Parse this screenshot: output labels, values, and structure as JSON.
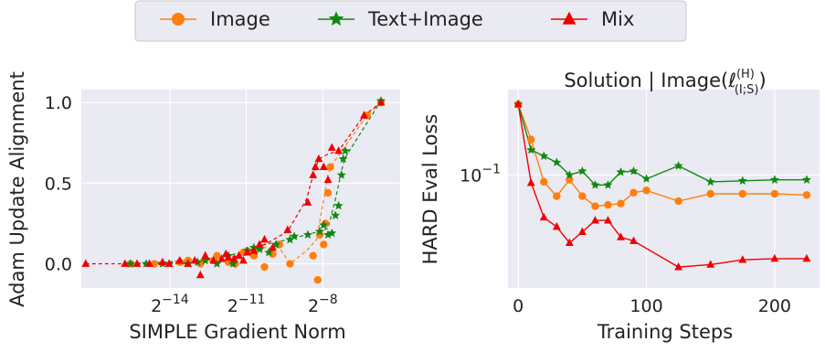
{
  "legend": {
    "entries": [
      {
        "label": "Image",
        "color": "#ff7f0e",
        "marker": "circle"
      },
      {
        "label": "Text+Image",
        "color": "#118811",
        "marker": "star"
      },
      {
        "label": "Mix",
        "color": "#ee0000",
        "marker": "triangle"
      }
    ],
    "placement": "top-center"
  },
  "chart_data": [
    {
      "type": "scatter",
      "title": "",
      "xlabel": "SIMPLE Gradient Norm",
      "ylabel": "Adam Update Alignment",
      "x_scale": "log2",
      "xlim": [
        5.5e-06,
        0.032
      ],
      "ylim": [
        -0.15,
        1.08
      ],
      "x_ticks": [
        {
          "value": 6.103515625e-05,
          "label": "2^{-14}"
        },
        {
          "value": 0.00048828125,
          "label": "2^{-11}"
        },
        {
          "value": 0.00390625,
          "label": "2^{-8}"
        }
      ],
      "y_ticks": [
        {
          "value": 0.0,
          "label": "0.0"
        },
        {
          "value": 0.5,
          "label": "0.5"
        },
        {
          "value": 1.0,
          "label": "1.0"
        }
      ],
      "grid": true,
      "series": [
        {
          "name": "Image",
          "color": "#ff7f0e",
          "marker": "circle",
          "trend": [
            [
              2.1e-05,
              0.0
            ],
            [
              5e-05,
              0.0
            ],
            [
              0.0001,
              0.01
            ],
            [
              0.0002,
              0.02
            ],
            [
              0.00035,
              0.04
            ],
            [
              0.0005,
              0.07
            ],
            [
              0.0007,
              0.1
            ],
            [
              0.0012,
              0.1
            ],
            [
              0.0016,
              0.0
            ],
            [
              0.0025,
              0.08
            ],
            [
              0.0033,
              0.15
            ],
            [
              0.004,
              0.4
            ],
            [
              0.0045,
              0.55
            ],
            [
              0.0048,
              0.6
            ],
            [
              0.013,
              0.92
            ],
            [
              0.019,
              1.0
            ]
          ],
          "points": [
            [
              2.1e-05,
              0.0
            ],
            [
              4e-05,
              0.0
            ],
            [
              8e-05,
              0.01
            ],
            [
              0.0001,
              0.02
            ],
            [
              0.00014,
              0.0
            ],
            [
              0.0002,
              0.02
            ],
            [
              0.00022,
              0.05
            ],
            [
              0.0003,
              0.01
            ],
            [
              0.00036,
              0.0
            ],
            [
              0.00045,
              0.07
            ],
            [
              0.0005,
              0.08
            ],
            [
              0.0006,
              0.05
            ],
            [
              0.0007,
              0.1
            ],
            [
              0.0008,
              -0.02
            ],
            [
              0.001,
              0.06
            ],
            [
              0.0012,
              0.12
            ],
            [
              0.0016,
              0.0
            ],
            [
              0.003,
              0.05
            ],
            [
              0.0034,
              -0.1
            ],
            [
              0.0036,
              0.18
            ],
            [
              0.004,
              0.12
            ],
            [
              0.0042,
              0.25
            ],
            [
              0.0045,
              0.44
            ],
            [
              0.0048,
              0.6
            ],
            [
              0.013,
              0.92
            ],
            [
              0.019,
              1.0
            ]
          ]
        },
        {
          "name": "Text+Image",
          "color": "#118811",
          "marker": "star",
          "trend": [
            [
              2.1e-05,
              0.0
            ],
            [
              5e-05,
              0.0
            ],
            [
              0.0001,
              0.0
            ],
            [
              0.0002,
              0.04
            ],
            [
              0.0003,
              0.05
            ],
            [
              0.0005,
              0.08
            ],
            [
              0.0008,
              0.12
            ],
            [
              0.0015,
              0.15
            ],
            [
              0.0025,
              0.18
            ],
            [
              0.0035,
              0.2
            ],
            [
              0.0045,
              0.22
            ],
            [
              0.0055,
              0.4
            ],
            [
              0.007,
              0.65
            ],
            [
              0.019,
              1.01
            ]
          ],
          "points": [
            [
              2.1e-05,
              0.0
            ],
            [
              3.2e-05,
              0.0
            ],
            [
              5e-05,
              0.0
            ],
            [
              6e-05,
              0.0
            ],
            [
              0.0001,
              0.0
            ],
            [
              0.00013,
              0.01
            ],
            [
              0.00016,
              0.02
            ],
            [
              0.00022,
              0.0
            ],
            [
              0.0003,
              0.05
            ],
            [
              0.00034,
              0.0
            ],
            [
              0.0005,
              0.08
            ],
            [
              0.0006,
              0.1
            ],
            [
              0.0007,
              0.09
            ],
            [
              0.0009,
              0.07
            ],
            [
              0.0011,
              0.12
            ],
            [
              0.0016,
              0.15
            ],
            [
              0.0018,
              0.17
            ],
            [
              0.0026,
              0.18
            ],
            [
              0.0036,
              0.2
            ],
            [
              0.004,
              0.24
            ],
            [
              0.0045,
              0.18
            ],
            [
              0.005,
              0.19
            ],
            [
              0.0055,
              0.3
            ],
            [
              0.006,
              0.36
            ],
            [
              0.0065,
              0.55
            ],
            [
              0.0068,
              0.65
            ],
            [
              0.0072,
              0.7
            ],
            [
              0.019,
              1.01
            ]
          ]
        },
        {
          "name": "Mix",
          "color": "#ee0000",
          "marker": "triangle",
          "trend": [
            [
              6.2e-06,
              0.0
            ],
            [
              2e-05,
              0.0
            ],
            [
              5e-05,
              0.01
            ],
            [
              0.0001,
              0.02
            ],
            [
              0.0002,
              0.03
            ],
            [
              0.0004,
              0.05
            ],
            [
              0.0008,
              0.12
            ],
            [
              0.0015,
              0.2
            ],
            [
              0.0025,
              0.4
            ],
            [
              0.003,
              0.55
            ],
            [
              0.0035,
              0.65
            ],
            [
              0.0045,
              0.68
            ],
            [
              0.006,
              0.7
            ],
            [
              0.012,
              0.92
            ],
            [
              0.019,
              1.0
            ]
          ],
          "points": [
            [
              6.2e-06,
              0.0
            ],
            [
              1.8e-05,
              0.0
            ],
            [
              2.5e-05,
              0.0
            ],
            [
              3.5e-05,
              0.0
            ],
            [
              5e-05,
              0.01
            ],
            [
              6e-05,
              0.0
            ],
            [
              8e-05,
              0.02
            ],
            [
              0.0001,
              0.0
            ],
            [
              0.00012,
              0.02
            ],
            [
              0.00014,
              -0.07
            ],
            [
              0.00016,
              0.05
            ],
            [
              0.0002,
              0.02
            ],
            [
              0.00025,
              0.03
            ],
            [
              0.00028,
              0.06
            ],
            [
              0.0003,
              0.04
            ],
            [
              0.00035,
              0.03
            ],
            [
              0.0004,
              0.05
            ],
            [
              0.00045,
              0.02
            ],
            [
              0.0005,
              0.07
            ],
            [
              0.0006,
              0.08
            ],
            [
              0.0007,
              0.12
            ],
            [
              0.0008,
              0.15
            ],
            [
              0.001,
              0.1
            ],
            [
              0.0015,
              0.21
            ],
            [
              0.0026,
              0.38
            ],
            [
              0.003,
              0.55
            ],
            [
              0.0032,
              0.6
            ],
            [
              0.0035,
              0.65
            ],
            [
              0.004,
              0.6
            ],
            [
              0.0045,
              0.52
            ],
            [
              0.005,
              0.72
            ],
            [
              0.006,
              0.7
            ],
            [
              0.012,
              0.92
            ],
            [
              0.019,
              1.0
            ]
          ]
        }
      ]
    },
    {
      "type": "line",
      "title": "Solution | Image(ℓ(H)(I;S))",
      "title_parts": {
        "base": "Solution | Image(ℓ",
        "sup": "(H)",
        "sub": "(I;S)",
        "tail": ")"
      },
      "xlabel": "Training Steps",
      "ylabel": "HARD Eval Loss",
      "y_scale": "log",
      "xlim": [
        -8,
        235
      ],
      "ylim": [
        0.0305,
        0.245
      ],
      "x_ticks": [
        {
          "value": 0,
          "label": "0"
        },
        {
          "value": 100,
          "label": "100"
        },
        {
          "value": 200,
          "label": "200"
        }
      ],
      "y_ticks": [
        {
          "value": 0.1,
          "label": "10^{-1}"
        }
      ],
      "grid": true,
      "series": [
        {
          "name": "Image",
          "color": "#ff7f0e",
          "marker": "circle",
          "x": [
            0,
            10,
            20,
            30,
            40,
            50,
            60,
            70,
            80,
            90,
            100,
            125,
            150,
            175,
            200,
            225
          ],
          "y": [
            0.21,
            0.145,
            0.093,
            0.08,
            0.095,
            0.08,
            0.072,
            0.073,
            0.074,
            0.083,
            0.085,
            0.076,
            0.082,
            0.082,
            0.082,
            0.081
          ]
        },
        {
          "name": "Text+Image",
          "color": "#118811",
          "marker": "star",
          "x": [
            0,
            10,
            20,
            30,
            40,
            50,
            60,
            70,
            80,
            90,
            100,
            125,
            150,
            175,
            200,
            225
          ],
          "y": [
            0.21,
            0.13,
            0.122,
            0.114,
            0.1,
            0.104,
            0.09,
            0.09,
            0.103,
            0.104,
            0.096,
            0.11,
            0.093,
            0.094,
            0.095,
            0.095
          ]
        },
        {
          "name": "Mix",
          "color": "#ee0000",
          "marker": "triangle",
          "x": [
            0,
            10,
            20,
            30,
            40,
            50,
            60,
            70,
            80,
            90,
            125,
            150,
            175,
            200,
            225
          ],
          "y": [
            0.21,
            0.092,
            0.064,
            0.058,
            0.049,
            0.055,
            0.062,
            0.062,
            0.052,
            0.05,
            0.038,
            0.039,
            0.041,
            0.0415,
            0.0415
          ]
        }
      ]
    }
  ]
}
